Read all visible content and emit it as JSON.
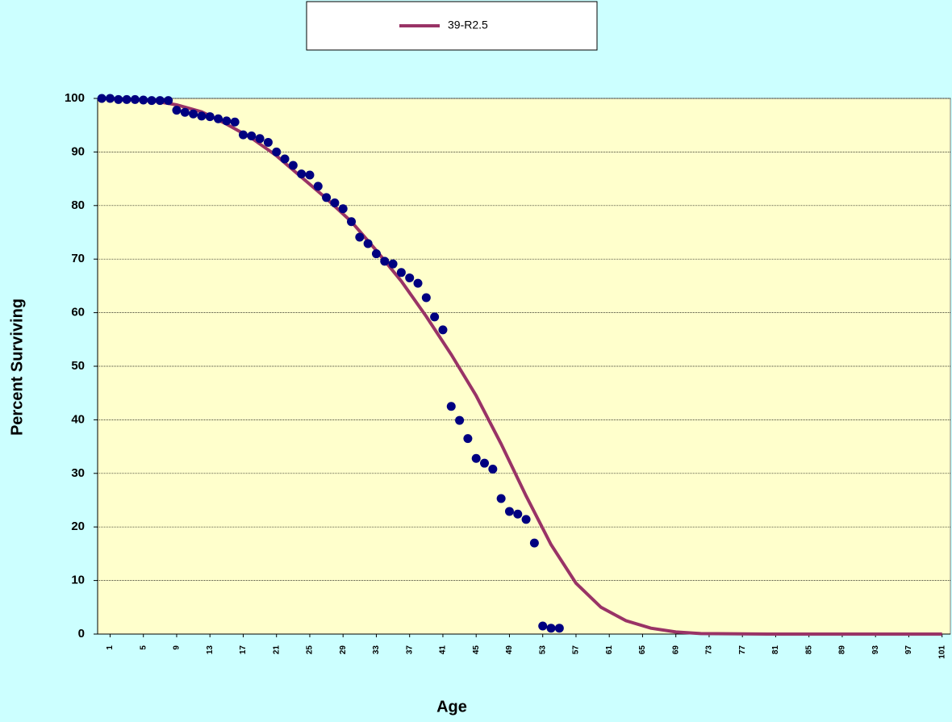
{
  "chart_data": {
    "type": "line",
    "x_label": "Age",
    "y_label": "Percent Surviving",
    "xlim": [
      -0.5,
      102
    ],
    "xticks": [
      1,
      5,
      9,
      13,
      17,
      21,
      25,
      29,
      33,
      37,
      41,
      45,
      49,
      53,
      57,
      61,
      65,
      69,
      73,
      77,
      81,
      85,
      89,
      93,
      97,
      101
    ],
    "ylim": [
      0,
      100
    ],
    "yticks": [
      0,
      10,
      20,
      30,
      40,
      50,
      60,
      70,
      80,
      90,
      100
    ],
    "grid": true,
    "legend": "top",
    "series": [
      {
        "name": "39-R2.5",
        "color": "#993366",
        "x": [
          0,
          3,
          6,
          9,
          12,
          15,
          18,
          21,
          24,
          27,
          30,
          33,
          36,
          39,
          42,
          45,
          48,
          51,
          54,
          57,
          60,
          63,
          66,
          69,
          72,
          80,
          90,
          101
        ],
        "values": [
          100,
          99.9,
          99.6,
          98.8,
          97.5,
          95.2,
          92.6,
          89.3,
          85.3,
          81.3,
          77,
          71.6,
          65.9,
          59.3,
          52.2,
          44.5,
          35.5,
          25.8,
          16.7,
          9.5,
          5,
          2.5,
          1.1,
          0.4,
          0.1,
          0,
          0,
          0
        ]
      },
      {
        "color": "#000080",
        "x": [
          0,
          1,
          2,
          3,
          4,
          5,
          6,
          7,
          8,
          9,
          10,
          11,
          12,
          13,
          14,
          15,
          16,
          17,
          18,
          19,
          20,
          21,
          22,
          23,
          24,
          25,
          26,
          27,
          28,
          29,
          30,
          31,
          32,
          33,
          34,
          35,
          36,
          37,
          38,
          39,
          40,
          41,
          42,
          43,
          44,
          45,
          46,
          47,
          48,
          49,
          50,
          51,
          52,
          53,
          54,
          55
        ],
        "values": [
          100,
          100,
          99.8,
          99.8,
          99.8,
          99.7,
          99.6,
          99.6,
          99.6,
          97.8,
          97.4,
          97.1,
          96.7,
          96.6,
          96.2,
          95.8,
          95.6,
          93.2,
          93,
          92.5,
          91.8,
          90,
          88.7,
          87.5,
          85.9,
          85.7,
          83.6,
          81.5,
          80.5,
          79.4,
          77,
          74.1,
          72.9,
          71,
          69.6,
          69.1,
          67.5,
          66.5,
          65.5,
          62.8,
          59.2,
          56.8,
          42.5,
          39.9,
          36.5,
          32.8,
          31.9,
          30.8,
          25.3,
          22.9,
          22.4,
          21.4,
          17,
          1.5,
          1.1,
          1.1
        ]
      }
    ]
  }
}
